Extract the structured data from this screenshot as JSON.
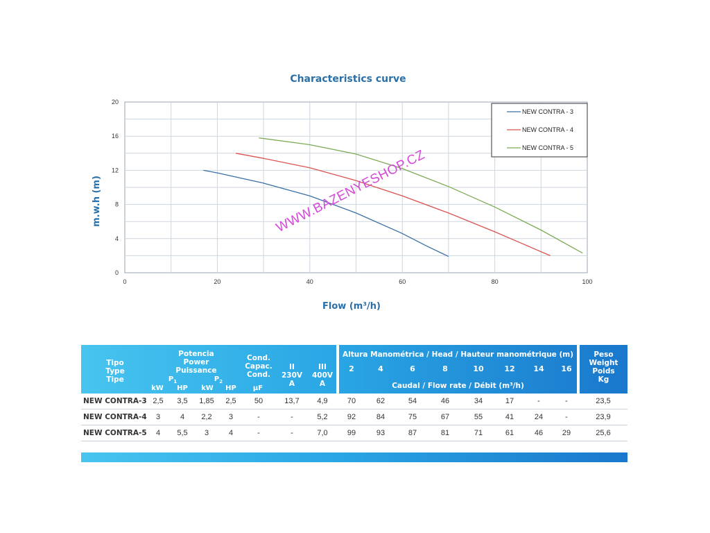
{
  "chart_data": {
    "type": "line",
    "title": "Characteristics curve",
    "xlabel": "Flow (m³/h)",
    "ylabel": "m.w.h (m)",
    "xlim": [
      0,
      100
    ],
    "ylim": [
      0,
      20
    ],
    "x_ticks": [
      "0",
      "20",
      "40",
      "60",
      "80",
      "100"
    ],
    "y_ticks": [
      "0",
      "4",
      "8",
      "12",
      "16",
      "20"
    ],
    "grid": true,
    "legend_position": "top-right",
    "series": [
      {
        "name": "NEW CONTRA - 3",
        "color": "#3b6fa3",
        "points": [
          [
            17,
            12
          ],
          [
            20,
            11.7
          ],
          [
            30,
            10.5
          ],
          [
            40,
            9
          ],
          [
            50,
            7
          ],
          [
            60,
            4.6
          ],
          [
            65,
            3.2
          ],
          [
            70,
            1.9
          ]
        ]
      },
      {
        "name": "NEW CONTRA - 4",
        "color": "#d9534f",
        "points": [
          [
            24,
            14
          ],
          [
            30,
            13.4
          ],
          [
            40,
            12.3
          ],
          [
            50,
            10.8
          ],
          [
            60,
            9
          ],
          [
            70,
            7
          ],
          [
            80,
            4.8
          ],
          [
            86,
            3.4
          ],
          [
            92,
            2
          ]
        ]
      },
      {
        "name": "NEW CONTRA - 5",
        "color": "#7daa55",
        "points": [
          [
            29,
            15.8
          ],
          [
            40,
            15
          ],
          [
            50,
            13.9
          ],
          [
            60,
            12.2
          ],
          [
            70,
            10.1
          ],
          [
            80,
            7.7
          ],
          [
            90,
            5
          ],
          [
            99,
            2.3
          ]
        ]
      }
    ]
  },
  "watermark": "WWW.BAZENYESHOP.CZ",
  "table": {
    "headers": {
      "tipo": [
        "Tipo",
        "Type",
        "Tipe"
      ],
      "potencia": [
        "Potencia",
        "Power",
        "Puissance"
      ],
      "p1": "P",
      "p1_sub": "1",
      "p2": "P",
      "p2_sub": "2",
      "units": [
        "kW",
        "HP",
        "kW",
        "HP"
      ],
      "cond": [
        "Cond.",
        "Capac.",
        "Cond."
      ],
      "cond_unit": "μF",
      "ii": [
        "II",
        "230V",
        "A"
      ],
      "iii": [
        "III",
        "400V",
        "A"
      ],
      "altura": "Altura Manométrica / Head / Hauteur manométrique (m)",
      "heads": [
        "2",
        "4",
        "6",
        "8",
        "10",
        "12",
        "14",
        "16"
      ],
      "caudal": "Caudal / Flow rate / Débit (m³/h)",
      "peso": [
        "Peso",
        "Weight",
        "Poids",
        "Kg"
      ]
    },
    "rows": [
      {
        "model": "NEW CONTRA-3",
        "values": [
          "2,5",
          "3,5",
          "1,85",
          "2,5",
          "50",
          "13,7",
          "4,9",
          "70",
          "62",
          "54",
          "46",
          "34",
          "17",
          "-",
          "-",
          "23,5"
        ]
      },
      {
        "model": "NEW CONTRA-4",
        "values": [
          "3",
          "4",
          "2,2",
          "3",
          "-",
          "-",
          "5,2",
          "92",
          "84",
          "75",
          "67",
          "55",
          "41",
          "24",
          "-",
          "23,9"
        ]
      },
      {
        "model": "NEW CONTRA-5",
        "values": [
          "4",
          "5,5",
          "3",
          "4",
          "-",
          "-",
          "7,0",
          "99",
          "93",
          "87",
          "81",
          "71",
          "61",
          "46",
          "29",
          "25,6"
        ]
      }
    ]
  }
}
